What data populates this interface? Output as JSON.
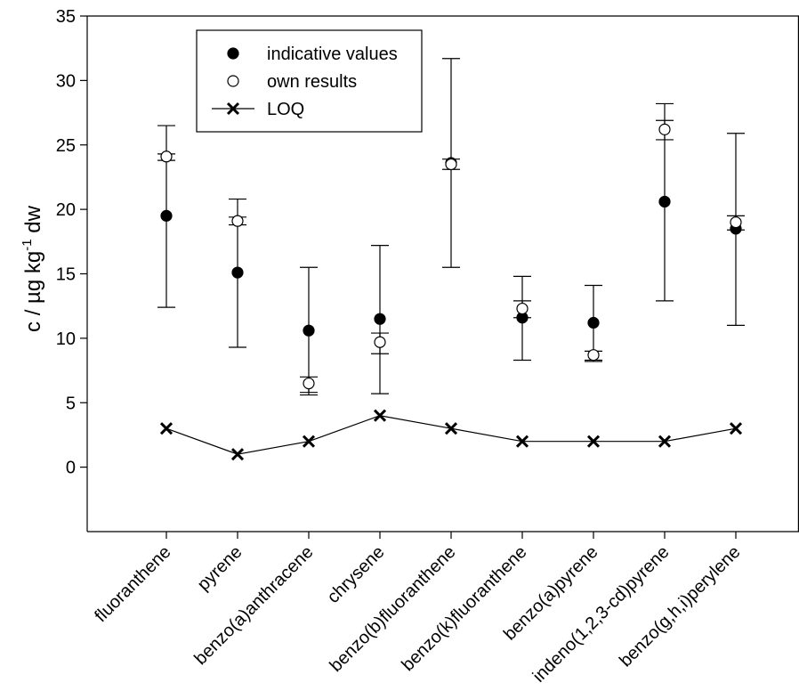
{
  "chart_data": {
    "type": "scatter",
    "categories": [
      "fluoranthene",
      "pyrene",
      "benzo(a)anthracene",
      "chrysene",
      "benzo(b)fluoranthene",
      "benzo(k)fluoranthene",
      "benzo(a)pyrene",
      "indeno(1,2,3-cd)pyrene",
      "benzo(g,h,i)perylene"
    ],
    "series": [
      {
        "name": "indicative values",
        "marker": "filled-circle",
        "values": [
          19.5,
          15.1,
          10.6,
          11.5,
          23.6,
          11.6,
          11.2,
          20.6,
          18.5
        ],
        "error_low": [
          12.4,
          9.3,
          5.6,
          5.7,
          15.5,
          8.3,
          8.2,
          12.9,
          11.0
        ],
        "error_high": [
          26.5,
          20.8,
          15.5,
          17.2,
          31.7,
          14.8,
          14.1,
          28.2,
          25.9
        ]
      },
      {
        "name": "own results",
        "marker": "open-circle",
        "values": [
          24.1,
          19.1,
          6.5,
          9.7,
          23.5,
          12.3,
          8.7,
          26.2,
          19.0
        ],
        "error_low": [
          23.8,
          18.8,
          5.8,
          8.8,
          23.1,
          11.6,
          8.3,
          25.4,
          18.4
        ],
        "error_high": [
          24.3,
          19.4,
          7.0,
          10.4,
          23.9,
          12.9,
          9.0,
          26.9,
          19.5
        ]
      },
      {
        "name": "LOQ",
        "marker": "x-line",
        "values": [
          3,
          1,
          2,
          4,
          3,
          2,
          2,
          2,
          3
        ]
      }
    ],
    "ylabel": {
      "base": "c / µg kg",
      "sup": "-1",
      "rest": " dw"
    },
    "ylim": [
      -5,
      35
    ],
    "yticks": [
      0,
      5,
      10,
      15,
      20,
      25,
      30,
      35
    ],
    "grid": false,
    "legend_position": "top-left"
  }
}
